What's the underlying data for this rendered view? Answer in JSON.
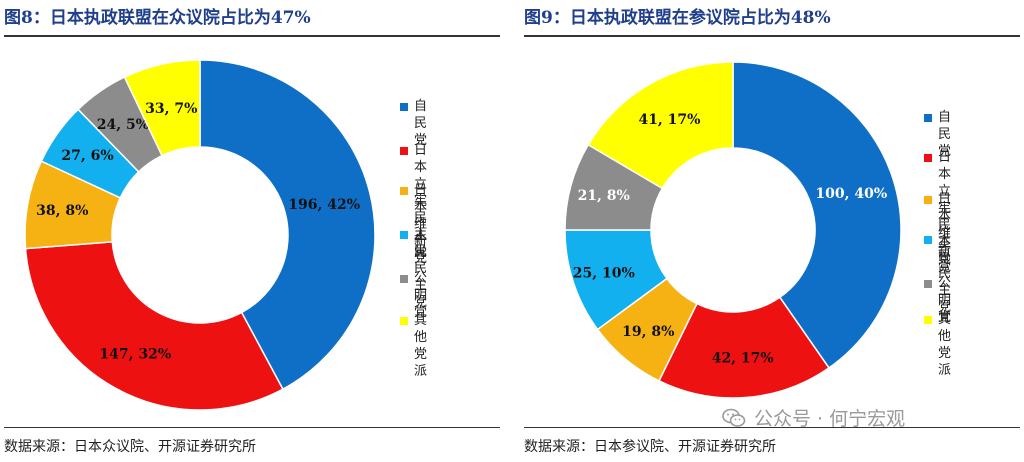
{
  "chart_data": [
    {
      "type": "pie",
      "title": "图8：日本执政联盟在众议院占比为47%",
      "source": "数据来源：日本众议院、开源证券研究所",
      "slices": [
        {
          "name": "自民党",
          "value": 196,
          "pct": 42,
          "label": "196, 42%",
          "color": "#0f6fc6"
        },
        {
          "name": "日本立宪民主党",
          "value": 147,
          "pct": 32,
          "label": "147, 32%",
          "color": "#ee1111"
        },
        {
          "name": "日本维新党",
          "value": 38,
          "pct": 8,
          "label": "38, 8%",
          "color": "#f5b212"
        },
        {
          "name": "人民民主党",
          "value": 27,
          "pct": 6,
          "label": "27, 6%",
          "color": "#12b0ef"
        },
        {
          "name": "公明党",
          "value": 24,
          "pct": 5,
          "label": "24, 5%",
          "color": "#8c8c8c"
        },
        {
          "name": "其他党派",
          "value": 33,
          "pct": 7,
          "label": "33, 7%",
          "color": "#ffff00"
        }
      ],
      "legend": {
        "placement": "right",
        "items": [
          {
            "text": "自民党",
            "color": "#0f6fc6"
          },
          {
            "text": "日本立宪民\n主党",
            "color": "#ee1111"
          },
          {
            "text": "日本维新党",
            "color": "#f5b212"
          },
          {
            "text": "人民民主党",
            "color": "#12b0ef"
          },
          {
            "text": "公明党",
            "color": "#8c8c8c"
          },
          {
            "text": "其他党派",
            "color": "#ffff00"
          }
        ]
      }
    },
    {
      "type": "pie",
      "title": "图9：日本执政联盟在参议院占比为48%",
      "source": "数据来源：日本参议院、开源证券研究所",
      "slices": [
        {
          "name": "自民党",
          "value": 100,
          "pct": 40,
          "label": "100, 40%",
          "color": "#0f6fc6"
        },
        {
          "name": "日本立宪民主党",
          "value": 42,
          "pct": 17,
          "label": "42, 17%",
          "color": "#ee1111"
        },
        {
          "name": "日本维新党",
          "value": 19,
          "pct": 8,
          "label": "19, 8%",
          "color": "#f5b212"
        },
        {
          "name": "人民民主党",
          "value": 25,
          "pct": 10,
          "label": "25, 10%",
          "color": "#12b0ef"
        },
        {
          "name": "公明党",
          "value": 21,
          "pct": 8,
          "label": "21, 8%",
          "color": "#8c8c8c"
        },
        {
          "name": "其他党派",
          "value": 41,
          "pct": 17,
          "label": "41, 17%",
          "color": "#ffff00"
        }
      ],
      "legend": {
        "placement": "right",
        "items": [
          {
            "text": "自民党",
            "color": "#0f6fc6"
          },
          {
            "text": "日本立宪\n民主党",
            "color": "#ee1111"
          },
          {
            "text": "日本维新\n党",
            "color": "#f5b212"
          },
          {
            "text": "人民民主\n党",
            "color": "#12b0ef"
          },
          {
            "text": "公明党",
            "color": "#8c8c8c"
          },
          {
            "text": "其他党派",
            "color": "#ffff00"
          }
        ]
      }
    }
  ],
  "watermark": {
    "text": "公众号 · 何宁宏观",
    "icon": "wechat-icon"
  }
}
